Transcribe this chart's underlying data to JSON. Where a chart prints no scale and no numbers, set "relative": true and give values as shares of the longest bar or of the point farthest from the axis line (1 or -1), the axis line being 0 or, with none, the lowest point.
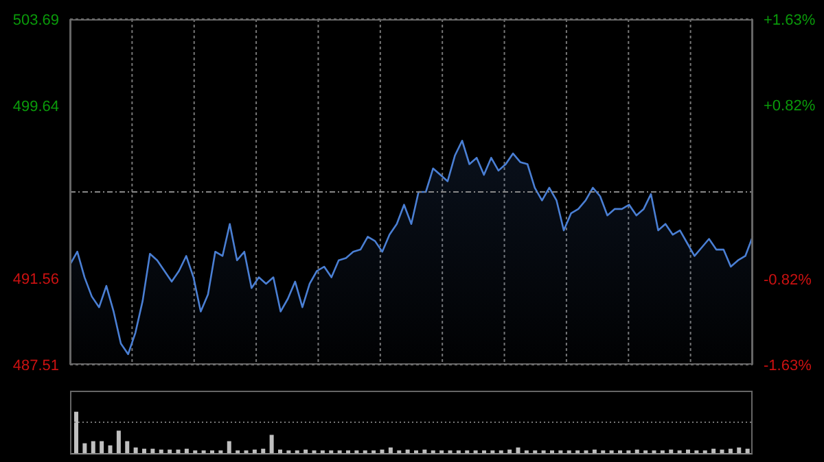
{
  "chart_data": [
    {
      "type": "area",
      "categories": [
        null,
        null,
        null,
        null,
        null,
        null,
        null,
        null,
        null,
        null,
        null,
        null,
        null,
        null,
        null,
        null,
        null,
        null,
        null,
        null,
        null,
        null,
        null,
        null,
        null,
        null,
        null,
        null,
        null,
        null,
        null,
        null,
        null,
        null,
        null,
        null,
        null,
        null,
        null,
        null,
        null,
        null,
        null,
        null,
        null,
        null,
        null,
        null,
        null,
        null,
        null,
        null,
        null,
        null,
        null,
        null,
        null,
        null,
        null,
        null,
        null,
        null,
        null,
        null,
        null,
        null,
        null,
        null,
        null,
        null,
        null,
        null,
        null,
        null,
        null,
        null,
        null,
        null,
        null,
        null,
        null,
        null,
        null,
        null,
        null,
        null,
        null,
        null,
        null,
        null,
        null,
        null,
        null,
        null,
        null
      ],
      "series": [
        {
          "color": "#4a7fd4",
          "values": [
            492.2,
            492.8,
            491.6,
            490.7,
            490.2,
            491.2,
            490.0,
            488.5,
            488.0,
            489.0,
            490.5,
            492.7,
            492.4,
            491.9,
            491.4,
            491.9,
            492.6,
            491.6,
            490.0,
            490.8,
            492.8,
            492.6,
            494.1,
            492.4,
            492.8,
            491.1,
            491.6,
            491.3,
            491.6,
            490.0,
            490.6,
            491.4,
            490.2,
            491.3,
            491.9,
            492.1,
            491.6,
            492.4,
            492.5,
            492.8,
            492.9,
            493.5,
            493.3,
            492.8,
            493.6,
            494.1,
            495.0,
            494.1,
            495.6,
            495.6,
            496.7,
            496.4,
            496.1,
            497.3,
            498.0,
            496.9,
            497.2,
            496.4,
            497.2,
            496.6,
            496.9,
            497.4,
            497.0,
            496.9,
            495.8,
            495.2,
            495.8,
            495.2,
            493.8,
            494.6,
            494.8,
            495.2,
            495.8,
            495.4,
            494.5,
            494.8,
            494.8,
            495.0,
            494.5,
            494.8,
            495.5,
            493.8,
            494.1,
            493.6,
            493.8,
            493.2,
            492.6,
            493.0,
            493.4,
            492.9,
            492.9,
            492.1,
            492.4,
            492.6,
            493.5
          ]
        }
      ],
      "ylim": [
        487.51,
        503.69
      ],
      "yticks": [
        487.51,
        491.56,
        499.64,
        503.69
      ],
      "y2lim": [
        -1.63,
        1.63
      ],
      "y2ticks": [
        {
          "value": -1.63,
          "label": "-1.63%"
        },
        {
          "value": -0.82,
          "label": "-0.82%"
        },
        {
          "value": 0.82,
          "label": "+0.82%"
        },
        {
          "value": 1.63,
          "label": "+1.63%"
        }
      ],
      "ref_lines": [
        {
          "axis": "y",
          "value": 495.6,
          "color": "#888888",
          "line_style": "dashed"
        }
      ],
      "grid": true,
      "legend": false,
      "tick_labels": "y"
    },
    {
      "type": "bar",
      "relative": true,
      "legend": false,
      "ref_lines": [
        {
          "axis": "y",
          "value": 0.75,
          "color": "#777777",
          "line_style": "dotted"
        }
      ],
      "categories": [
        null,
        null,
        null,
        null,
        null,
        null,
        null,
        null,
        null,
        null,
        null,
        null,
        null,
        null,
        null,
        null,
        null,
        null,
        null,
        null,
        null,
        null,
        null,
        null,
        null,
        null,
        null,
        null,
        null,
        null,
        null,
        null,
        null,
        null,
        null,
        null,
        null,
        null,
        null,
        null,
        null,
        null,
        null,
        null,
        null,
        null,
        null,
        null,
        null,
        null,
        null,
        null,
        null,
        null,
        null,
        null,
        null,
        null,
        null,
        null,
        null,
        null,
        null,
        null,
        null,
        null,
        null,
        null,
        null,
        null,
        null,
        null,
        null,
        null,
        null,
        null,
        null,
        null,
        null,
        null
      ],
      "series": [
        {
          "color": "#bfbfbf",
          "values": [
            1,
            0.25,
            0.3,
            0.3,
            0.2,
            0.55,
            0.3,
            0.15,
            0.12,
            0.12,
            0.1,
            0.1,
            0.1,
            0.12,
            0.08,
            0.08,
            0.08,
            0.08,
            0.3,
            0.08,
            0.08,
            0.1,
            0.12,
            0.45,
            0.1,
            0.08,
            0.08,
            0.1,
            0.08,
            0.08,
            0.08,
            0.08,
            0.08,
            0.08,
            0.08,
            0.08,
            0.1,
            0.15,
            0.08,
            0.1,
            0.08,
            0.1,
            0.08,
            0.08,
            0.08,
            0.08,
            0.08,
            0.08,
            0.08,
            0.08,
            0.08,
            0.1,
            0.15,
            0.08,
            0.08,
            0.08,
            0.08,
            0.08,
            0.08,
            0.08,
            0.08,
            0.1,
            0.08,
            0.08,
            0.08,
            0.08,
            0.1,
            0.08,
            0.08,
            0.08,
            0.1,
            0.08,
            0.1,
            0.08,
            0.08,
            0.12,
            0.1,
            0.12,
            0.15,
            0.12
          ]
        }
      ]
    }
  ]
}
